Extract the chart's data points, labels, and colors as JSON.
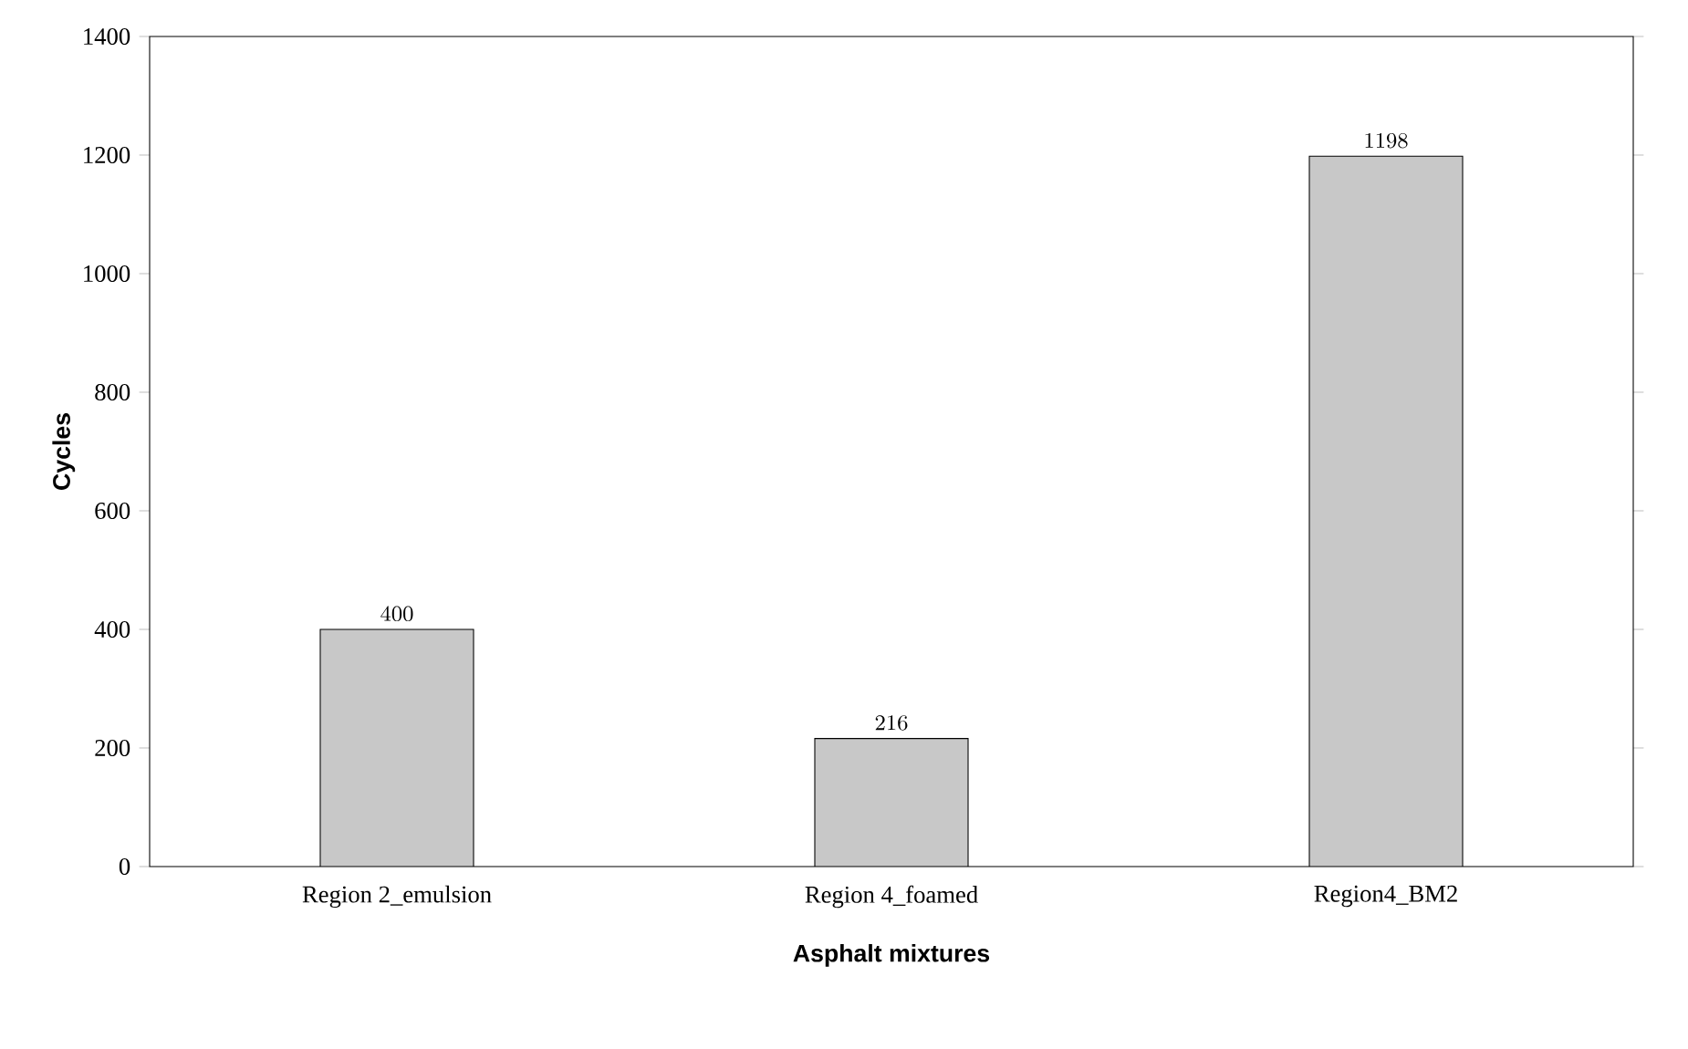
{
  "chart_data": {
    "type": "bar",
    "xlabel": "Asphalt mixtures",
    "ylabel": "Cycles",
    "categories": [
      "Region 2_emulsion",
      "Region 4_foamed",
      "Region4_BM2"
    ],
    "values": [
      400,
      216,
      1198
    ],
    "color": "#c8c8c8",
    "ylim": [
      0,
      1400
    ],
    "yticks": [
      0,
      200,
      400,
      600,
      800,
      1000,
      1200,
      1400
    ],
    "data_labels": true
  }
}
